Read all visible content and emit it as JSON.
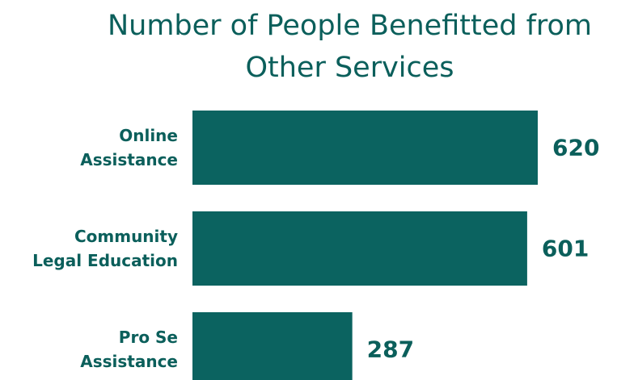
{
  "chart_data": {
    "type": "bar",
    "orientation": "horizontal",
    "title": "Number of People Benefitted from\nOther Services",
    "categories": [
      "Online\nAssistance",
      "Community\nLegal Education",
      "Pro Se\nAssistance"
    ],
    "values": [
      620,
      601,
      287
    ],
    "color": "#0b6360"
  }
}
